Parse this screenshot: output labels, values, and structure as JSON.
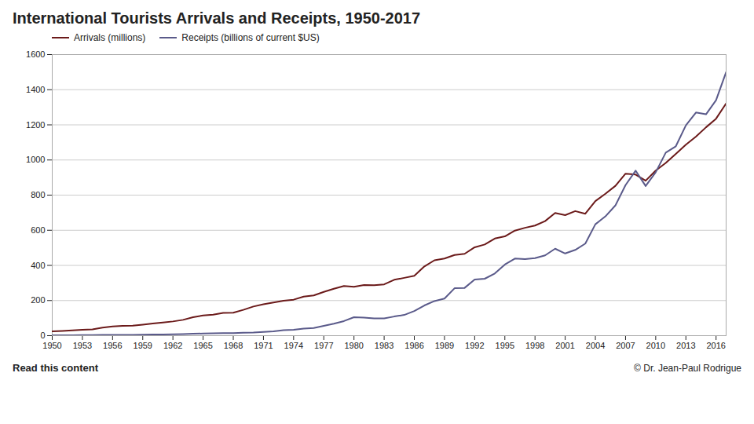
{
  "chart_data": {
    "type": "line",
    "title": "International Tourists Arrivals and Receipts, 1950-2017",
    "x": [
      1950,
      1951,
      1952,
      1953,
      1954,
      1955,
      1956,
      1957,
      1958,
      1959,
      1960,
      1961,
      1962,
      1963,
      1964,
      1965,
      1966,
      1967,
      1968,
      1969,
      1970,
      1971,
      1972,
      1973,
      1974,
      1975,
      1976,
      1977,
      1978,
      1979,
      1980,
      1981,
      1982,
      1983,
      1984,
      1985,
      1986,
      1987,
      1988,
      1989,
      1990,
      1991,
      1992,
      1993,
      1994,
      1995,
      1996,
      1997,
      1998,
      1999,
      2000,
      2001,
      2002,
      2003,
      2004,
      2005,
      2006,
      2007,
      2008,
      2009,
      2010,
      2011,
      2012,
      2013,
      2014,
      2015,
      2016,
      2017
    ],
    "series": [
      {
        "name": "Arrivals (millions)",
        "color": "#6b1a1a",
        "values": [
          25,
          27,
          30,
          33,
          36,
          46,
          52,
          56,
          57,
          63,
          69,
          75,
          81,
          90,
          105,
          115,
          120,
          130,
          131,
          147,
          166,
          179,
          189,
          199,
          205,
          222,
          229,
          249,
          267,
          283,
          278,
          288,
          287,
          292,
          318,
          329,
          341,
          394,
          429,
          439,
          459,
          466,
          503,
          519,
          553,
          565,
          598,
          614,
          627,
          652,
          698,
          686,
          709,
          694,
          766,
          808,
          853,
          922,
          917,
          882,
          940,
          983,
          1035,
          1087,
          1133,
          1186,
          1235,
          1322
        ]
      },
      {
        "name": "Receipts (billions of current $US)",
        "color": "#5a5a8a",
        "values": [
          2,
          2,
          2,
          3,
          3,
          4,
          4,
          5,
          5,
          6,
          7,
          7,
          8,
          9,
          11,
          12,
          13,
          14,
          15,
          17,
          18,
          21,
          25,
          31,
          33,
          40,
          44,
          56,
          68,
          83,
          105,
          103,
          98,
          98,
          109,
          118,
          140,
          172,
          197,
          211,
          270,
          272,
          320,
          324,
          354,
          405,
          439,
          436,
          441,
          457,
          495,
          468,
          488,
          524,
          634,
          679,
          742,
          857,
          939,
          852,
          930,
          1042,
          1078,
          1197,
          1270,
          1260,
          1340,
          1500
        ]
      }
    ],
    "xlim": [
      1950,
      2017
    ],
    "xticks": [
      1950,
      1953,
      1956,
      1959,
      1962,
      1965,
      1968,
      1971,
      1974,
      1977,
      1980,
      1983,
      1986,
      1989,
      1992,
      1995,
      1998,
      2001,
      2004,
      2007,
      2010,
      2013,
      2016
    ],
    "ylim": [
      0,
      1600
    ],
    "yticks": [
      0,
      200,
      400,
      600,
      800,
      1000,
      1200,
      1400,
      1600
    ],
    "grid": true,
    "legend": "upper left",
    "annotations": [
      "Read this content",
      "© Dr. Jean-Paul Rodrigue"
    ]
  }
}
